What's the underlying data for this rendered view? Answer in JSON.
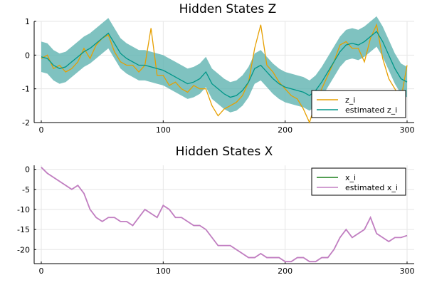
{
  "chart_data": [
    {
      "type": "line",
      "title": "Hidden States Z",
      "xlabel": "",
      "ylabel": "",
      "xlim": [
        0,
        300
      ],
      "ylim": [
        -2,
        1
      ],
      "xticks": [
        "0",
        "100",
        "200",
        "300"
      ],
      "yticks": [
        "-2",
        "-1",
        "0",
        "1"
      ],
      "grid": true,
      "legend_position": "bottom-right",
      "legend": [
        "z_i",
        "estimated z_i"
      ],
      "colors": {
        "z_i": "#e69f00",
        "estimated": "#009688",
        "band": "#5fb3b0"
      },
      "x": [
        0,
        5,
        10,
        15,
        20,
        25,
        30,
        35,
        40,
        45,
        50,
        55,
        60,
        65,
        70,
        75,
        80,
        85,
        90,
        95,
        100,
        105,
        110,
        115,
        120,
        125,
        130,
        135,
        140,
        145,
        150,
        155,
        160,
        165,
        170,
        175,
        180,
        185,
        190,
        195,
        200,
        205,
        210,
        215,
        220,
        225,
        230,
        235,
        240,
        245,
        250,
        255,
        260,
        265,
        270,
        275,
        280,
        285,
        290,
        295,
        300
      ],
      "series": [
        {
          "name": "z_i",
          "values": [
            -0.1,
            0.0,
            -0.4,
            -0.3,
            -0.5,
            -0.4,
            -0.2,
            0.2,
            -0.1,
            0.3,
            0.5,
            0.6,
            0.1,
            -0.2,
            -0.3,
            -0.3,
            -0.5,
            -0.3,
            0.8,
            -0.6,
            -0.6,
            -0.9,
            -0.8,
            -1.0,
            -1.1,
            -0.9,
            -1.0,
            -1.0,
            -1.5,
            -1.8,
            -1.6,
            -1.5,
            -1.4,
            -1.2,
            -0.8,
            0.2,
            0.9,
            -0.3,
            -0.5,
            -0.8,
            -1.0,
            -1.2,
            -1.3,
            -1.6,
            -2.0,
            -1.4,
            -1.0,
            -0.6,
            -0.2,
            0.3,
            0.4,
            0.2,
            0.2,
            -0.2,
            0.5,
            0.9,
            -0.1,
            -0.7,
            -1.0,
            -1.3,
            -0.3
          ]
        },
        {
          "name": "estimated z_i",
          "values": [
            -0.05,
            -0.1,
            -0.3,
            -0.4,
            -0.35,
            -0.2,
            -0.05,
            0.1,
            0.2,
            0.35,
            0.5,
            0.65,
            0.35,
            0.05,
            -0.1,
            -0.2,
            -0.3,
            -0.3,
            -0.35,
            -0.4,
            -0.45,
            -0.55,
            -0.65,
            -0.75,
            -0.85,
            -0.8,
            -0.7,
            -0.5,
            -0.85,
            -1.0,
            -1.15,
            -1.25,
            -1.2,
            -1.05,
            -0.8,
            -0.4,
            -0.3,
            -0.5,
            -0.7,
            -0.85,
            -0.95,
            -1.0,
            -1.05,
            -1.1,
            -1.2,
            -1.05,
            -0.8,
            -0.5,
            -0.2,
            0.1,
            0.3,
            0.35,
            0.3,
            0.4,
            0.55,
            0.7,
            0.4,
            0.0,
            -0.4,
            -0.7,
            -0.8
          ]
        }
      ],
      "band_halfwidth": 0.45
    },
    {
      "type": "line",
      "title": "Hidden States X",
      "xlabel": "",
      "ylabel": "",
      "xlim": [
        0,
        300
      ],
      "ylim": [
        -23.5,
        1
      ],
      "xticks": [
        "0",
        "100",
        "200",
        "300"
      ],
      "yticks": [
        "0",
        "-5",
        "-10",
        "-15",
        "-20"
      ],
      "grid": true,
      "legend_position": "top-right",
      "legend": [
        "x_i",
        "estimated x_i"
      ],
      "colors": {
        "x_i": "#1a7f1a",
        "estimated": "#c27ec2"
      },
      "x": [
        0,
        5,
        10,
        15,
        20,
        25,
        30,
        35,
        40,
        45,
        50,
        55,
        60,
        65,
        70,
        75,
        80,
        85,
        90,
        95,
        100,
        105,
        110,
        115,
        120,
        125,
        130,
        135,
        140,
        145,
        150,
        155,
        160,
        165,
        170,
        175,
        180,
        185,
        190,
        195,
        200,
        205,
        210,
        215,
        220,
        225,
        230,
        235,
        240,
        245,
        250,
        255,
        260,
        265,
        270,
        275,
        280,
        285,
        290,
        295,
        300
      ],
      "series": [
        {
          "name": "x_i",
          "values": [
            0.5,
            -1,
            -2,
            -3,
            -4,
            -5,
            -4,
            -6,
            -10,
            -12,
            -13,
            -12,
            -12,
            -13,
            -13,
            -14,
            -12,
            -10,
            -11,
            -12,
            -9,
            -10,
            -12,
            -12,
            -13,
            -14,
            -14,
            -15,
            -17,
            -19,
            -19,
            -19,
            -20,
            -21,
            -22,
            -22,
            -21,
            -22,
            -22,
            -22,
            -23,
            -23,
            -22,
            -22,
            -23,
            -23,
            -22,
            -22,
            -20,
            -17,
            -15,
            -17,
            -16,
            -15,
            -12,
            -16,
            -17,
            -18,
            -17,
            -17,
            -16.5
          ]
        },
        {
          "name": "estimated x_i",
          "values": [
            0.5,
            -1,
            -2,
            -3,
            -4,
            -5,
            -4,
            -6,
            -10,
            -12,
            -13,
            -12,
            -12,
            -13,
            -13,
            -14,
            -12,
            -10,
            -11,
            -12,
            -9,
            -10,
            -12,
            -12,
            -13,
            -14,
            -14,
            -15,
            -17,
            -19,
            -19,
            -19,
            -20,
            -21,
            -22,
            -22,
            -21,
            -22,
            -22,
            -22,
            -23,
            -23,
            -22,
            -22,
            -23,
            -23,
            -22,
            -22,
            -20,
            -17,
            -15,
            -17,
            -16,
            -15,
            -12,
            -16,
            -17,
            -18,
            -17,
            -17,
            -16.5
          ]
        }
      ]
    }
  ]
}
